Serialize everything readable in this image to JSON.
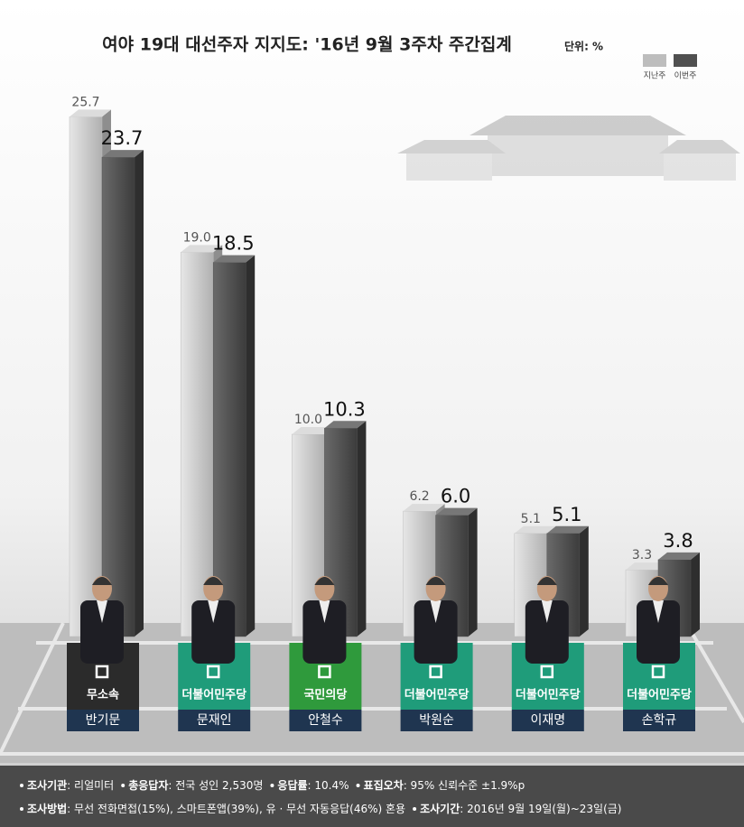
{
  "chart_data": {
    "type": "bar",
    "title": "여야 19대 대선주자 지지도: '16년 9월 3주차 주간집계",
    "unit": "단위: %",
    "categories": [
      "반기문",
      "문재인",
      "안철수",
      "박원순",
      "이재명",
      "손학규"
    ],
    "parties": [
      "무소속",
      "더불어민주당",
      "국민의당",
      "더불어민주당",
      "더불어민주당",
      "더불어민주당"
    ],
    "party_colors": [
      "#2b2b2b",
      "#1f9c7a",
      "#2f9a3c",
      "#1f9c7a",
      "#1f9c7a",
      "#1f9c7a"
    ],
    "series": [
      {
        "name": "지난주",
        "color": "#bdbdbd",
        "values": [
          25.7,
          19.0,
          10.0,
          6.2,
          5.1,
          3.3
        ],
        "value_labels": [
          "25.7",
          "19.0",
          "10.0",
          "6.2",
          "5.1",
          "3.3"
        ]
      },
      {
        "name": "이번주",
        "color": "#505050",
        "values": [
          23.7,
          18.5,
          10.3,
          6.0,
          5.1,
          3.8
        ],
        "value_labels": [
          "23.7",
          "18.5",
          "10.3",
          "6.0",
          "5.1",
          "3.8"
        ]
      }
    ],
    "legend": "top-right",
    "footer": [
      [
        {
          "label": "조사기관",
          "text": ": 리얼미터"
        },
        {
          "label": "총응답자",
          "text": ": 전국 성인 2,530명"
        },
        {
          "label": "응답률",
          "text": ": 10.4%"
        },
        {
          "label": "표집오차",
          "text": ": 95% 신뢰수준 ±1.9%p"
        }
      ],
      [
        {
          "label": "조사방법",
          "text": ": 무선 전화면접(15%), 스마트폰앱(39%), 유 · 무선 자동응답(46%) 혼용"
        },
        {
          "label": "조사기간",
          "text": ": 2016년 9월 19일(월)~23일(금)"
        }
      ]
    ]
  }
}
